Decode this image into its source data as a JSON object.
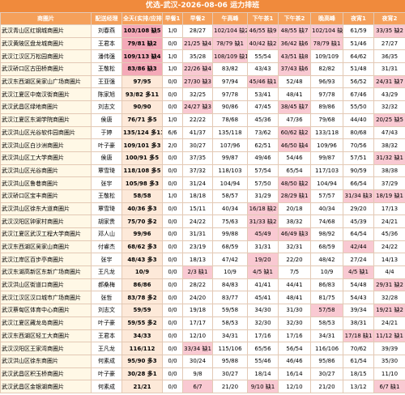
{
  "title": "优选-武汉-2026-08-06 运力排班",
  "table": {
    "header": [
      "商圈片",
      "配送经理",
      "全天(实排/应排)",
      "早餐1",
      "早餐2",
      "午高峰",
      "下午茶1",
      "下午茶2",
      "晚高峰",
      "夜宵1",
      "夜宵2"
    ],
    "rows": [
      [
        "武汉青山区红钢城商圈片",
        "刘春燕",
        "103/108 缺5",
        "1/0",
        "28/27",
        "102/104 缺2",
        "46/55 缺9",
        "48/55 缺7",
        "102/104 缺2",
        "61/59",
        "33/35 缺2"
      ],
      [
        "武汉黄陂区盘龙城商圈片",
        "王君本",
        "79/81 缺2",
        "0/0",
        "21/25 缺4",
        "78/79 缺1",
        "40/42 缺2",
        "36/42 缺6",
        "78/79 缺1",
        "51/46",
        "27/27"
      ],
      [
        "武汉江汉区万松园商圈片",
        "潘伟强",
        "109/113 缺4",
        "1/0",
        "35/28",
        "108/109 缺1",
        "55/54",
        "43/51 缺8",
        "109/109",
        "64/62",
        "36/35"
      ],
      [
        "武汉硚口区古田桥商圈片",
        "王敬松",
        "83/86 缺3",
        "1/0",
        "22/26 缺4",
        "83/82",
        "43/43",
        "37/43 缺6",
        "82/82",
        "51/48",
        "31/31"
      ],
      [
        "武汉东西湖区吴家山广场商圈片",
        "王亚强",
        "97/95",
        "0/0",
        "27/30 缺3",
        "97/94",
        "45/46 缺1",
        "52/48",
        "96/93",
        "56/52",
        "24/31 缺7"
      ],
      [
        "武汉江夏区中南汉街商圈片",
        "陈家旭",
        "93/82 多11",
        "0/0",
        "32/25",
        "97/78",
        "53/41",
        "48/41",
        "97/78",
        "67/46",
        "43/29"
      ],
      [
        "武汉武昌区绿地商圈片",
        "刘志文",
        "90/90",
        "0/0",
        "24/27 缺3",
        "90/86",
        "47/45",
        "38/45 缺7",
        "89/86",
        "55/50",
        "32/32"
      ],
      [
        "武汉江夏区东湖学院商圈片",
        "侯唐",
        "76/71 多5",
        "1/0",
        "22/22",
        "78/68",
        "45/36",
        "47/36",
        "79/68",
        "44/40",
        "20/25 缺5"
      ],
      [
        "武汉洪山区光谷软件园商圈片",
        "于婷",
        "135/124 多11",
        "6/6",
        "41/37",
        "135/118",
        "73/62",
        "60/62 缺2",
        "133/118",
        "80/68",
        "47/43"
      ],
      [
        "武汉洪山区白沙洲商圈片",
        "叶子豪",
        "109/101 多3",
        "2/0",
        "30/27",
        "107/96",
        "62/51",
        "46/50 缺4",
        "109/96",
        "70/56",
        "38/32"
      ],
      [
        "武汉洪山区工大学商圈片",
        "侯唐",
        "100/91 多5",
        "0/0",
        "37/35",
        "99/87",
        "49/46",
        "54/46",
        "99/87",
        "57/51",
        "31/32 缺1"
      ],
      [
        "武汉洪山区光谷商圈片",
        "覃雪琦",
        "118/108 多5",
        "0/0",
        "37/32",
        "118/103",
        "57/54",
        "65/54",
        "117/103",
        "90/59",
        "38/38"
      ],
      [
        "武汉洪山区鲁巷商圈片",
        "张宇",
        "105/98 多3",
        "0/0",
        "31/24",
        "104/94",
        "57/50",
        "48/50 缺2",
        "104/94",
        "66/54",
        "37/29"
      ],
      [
        "武汉硚口区宝丰商圈片",
        "王敬松",
        "58/58",
        "1/0",
        "18/18",
        "58/57",
        "31/29",
        "28/29 缺1",
        "57/57",
        "31/34 缺3",
        "18/19 缺1"
      ],
      [
        "武汉洪山区徐东大道商圈片",
        "覃雪琦",
        "40/36 多3",
        "0/0",
        "15/11",
        "40/34",
        "16/18 缺2",
        "20/18",
        "40/34",
        "29/20",
        "17/13"
      ],
      [
        "武汉汉阳区钟家村商圈片",
        "胡家贵",
        "75/70 多2",
        "0/0",
        "24/22",
        "75/63",
        "31/33 缺2",
        "38/32",
        "74/68",
        "45/39",
        "24/21"
      ],
      [
        "武汉江夏区武汉工程大学商圈片",
        "邓人山",
        "99/96",
        "0/0",
        "31/31",
        "99/88",
        "45/49",
        "46/49 缺3",
        "98/92",
        "64/54",
        "45/36"
      ],
      [
        "武汉东西湖区吴家山商圈片",
        "付睿杰",
        "68/62 多3",
        "0/0",
        "23/19",
        "68/59",
        "31/31",
        "32/31",
        "68/59",
        "42/44",
        "24/22"
      ],
      [
        "武汉江岸区百步亭商圈片",
        "张宇",
        "48/43 多3",
        "0/0",
        "18/13",
        "47/42",
        "19/20",
        "22/20",
        "48/42",
        "27/24",
        "14/13"
      ],
      [
        "武汉东湖高新区东新广场商圈片",
        "王凡龙",
        "10/9",
        "0/0",
        "2/3 缺1",
        "10/9",
        "4/5 缺1",
        "7/5",
        "10/9",
        "4/5 缺1",
        "4/4"
      ],
      [
        "武汉洪山区街道口商圈片",
        "郝桑梅",
        "86/86",
        "0/0",
        "28/22",
        "84/83",
        "41/41",
        "44/41",
        "86/83",
        "54/48",
        "29/31 缺2"
      ],
      [
        "武汉江汉区汉口城市广场商圈片",
        "张哲",
        "83/78 多2",
        "0/0",
        "24/20",
        "83/77",
        "45/41",
        "48/41",
        "81/75",
        "54/43",
        "32/28"
      ],
      [
        "武汉蔡甸区体育中心商圈片",
        "刘志文",
        "59/59",
        "0/0",
        "19/18",
        "59/58",
        "34/30",
        "31/30",
        "57/58",
        "39/34",
        "19/21 缺2"
      ],
      [
        "武汉江夏区藏龙岛商圈片",
        "叶子豪",
        "59/55 多2",
        "0/0",
        "17/17",
        "58/53",
        "32/30",
        "32/30",
        "58/53",
        "38/31",
        "24/21"
      ],
      [
        "武汉东西湖区轻工大商圈片",
        "王君本",
        "34/33",
        "0/0",
        "12/10",
        "34/31",
        "17/16",
        "17/16",
        "34/31",
        "17/18 缺1",
        "11/12 缺1"
      ],
      [
        "武汉汉阳区王家湾商圈片",
        "王凡龙",
        "116/112",
        "0/0",
        "33/34 缺1",
        "115/106",
        "65/56",
        "56/54",
        "116/106",
        "70/62",
        "39/39"
      ],
      [
        "武汉洪山区徐东商圈片",
        "何素成",
        "95/90 多3",
        "0/0",
        "30/24",
        "95/88",
        "55/46",
        "46/46",
        "95/86",
        "61/54",
        "35/30"
      ],
      [
        "武汉武昌区积玉桥商圈片",
        "叶子豪",
        "30/28 多1",
        "0/0",
        "9/8",
        "30/27",
        "18/14",
        "16/14",
        "30/27",
        "18/15",
        "11/10"
      ],
      [
        "武汉武昌区金银湖商圈片",
        "何素成",
        "21/21",
        "0/0",
        "6/7",
        "21/20",
        "9/10 缺1",
        "12/10",
        "21/20",
        "13/12",
        "6/7 缺1"
      ]
    ]
  }
}
